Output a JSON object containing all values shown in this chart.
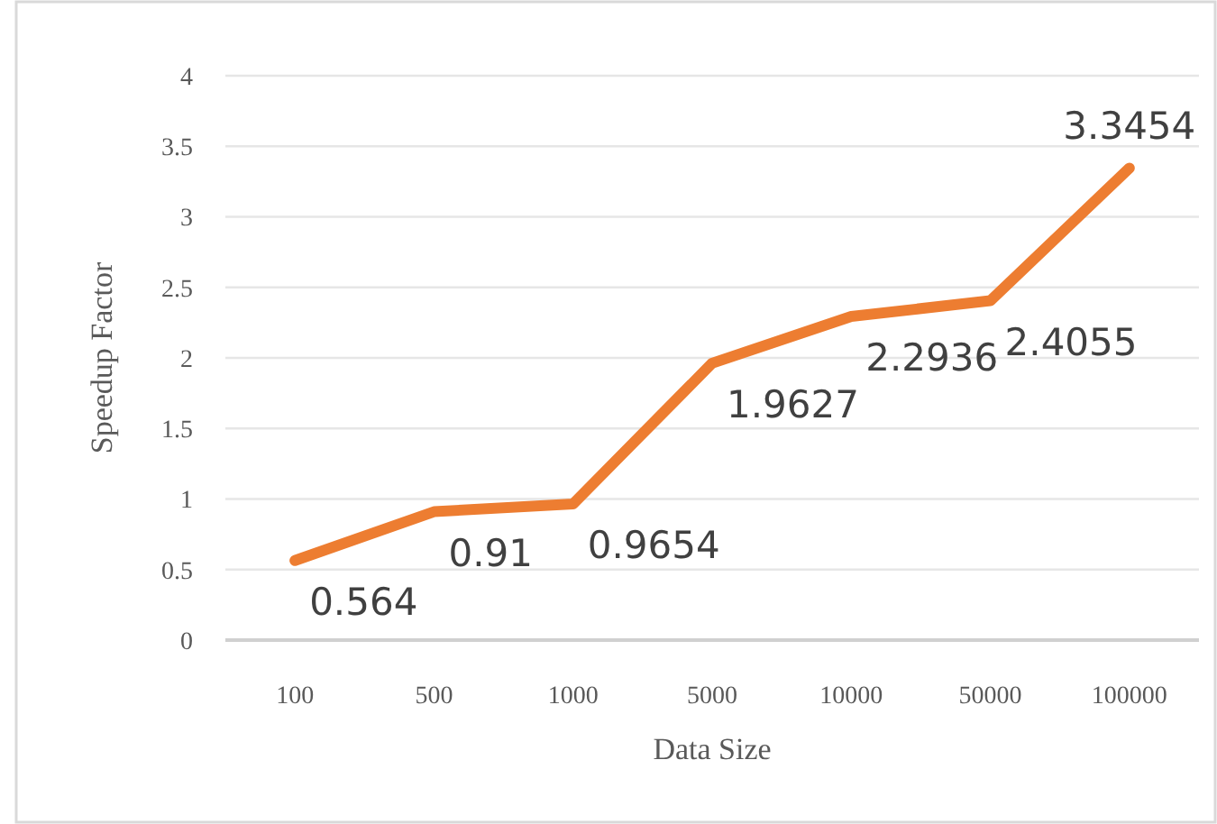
{
  "chart_data": {
    "type": "line",
    "xlabel": "Data Size",
    "ylabel": "Speedup Factor",
    "categories": [
      "100",
      "500",
      "1000",
      "5000",
      "10000",
      "50000",
      "100000"
    ],
    "series": [
      {
        "color": "#ed7d31",
        "values": [
          0.564,
          0.91,
          0.9654,
          1.9627,
          2.2936,
          2.4055,
          3.3454
        ]
      }
    ],
    "ylim": [
      0,
      4
    ],
    "yticks": [
      0,
      0.5,
      1,
      1.5,
      2,
      2.5,
      3,
      3.5,
      4
    ],
    "grid": "y",
    "data_labels": true,
    "marker": "none",
    "line_style": "solid"
  }
}
